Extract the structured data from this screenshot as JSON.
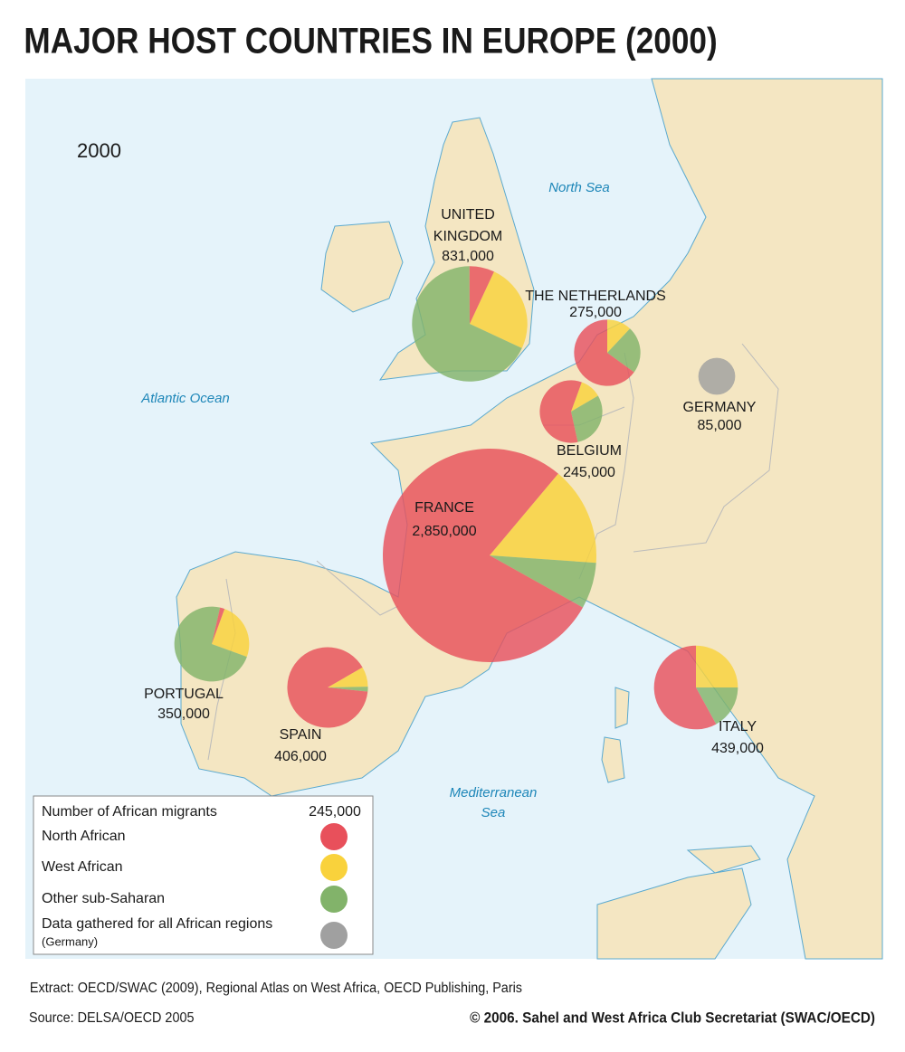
{
  "title": "MAJOR HOST COUNTRIES IN EUROPE (2000)",
  "year_label": "2000",
  "seas": [
    {
      "name_lines": [
        "North Sea"
      ]
    },
    {
      "name_lines": [
        "Atlantic Ocean"
      ]
    },
    {
      "name_lines": [
        "Mediterranean",
        "Sea"
      ]
    }
  ],
  "countries": [
    {
      "name_lines": [
        "UNITED",
        "KINGDOM"
      ],
      "total": 831000,
      "total_label": "831,000",
      "shares": [
        7,
        25,
        68
      ]
    },
    {
      "name_lines": [
        "THE NETHERLANDS"
      ],
      "total": 275000,
      "total_label": "275,000",
      "shares": [
        65,
        12,
        23
      ]
    },
    {
      "name_lines": [
        "BELGIUM"
      ],
      "total": 245000,
      "total_label": "245,000",
      "shares": [
        59,
        11,
        30
      ]
    },
    {
      "name_lines": [
        "FRANCE"
      ],
      "total": 2850000,
      "total_label": "2,850,000",
      "shares": [
        78,
        15,
        7
      ]
    },
    {
      "name_lines": [
        "GERMANY"
      ],
      "total": 85000,
      "total_label": "85,000"
    },
    {
      "name_lines": [
        "PORTUGAL"
      ],
      "total": 350000,
      "total_label": "350,000",
      "shares": [
        2,
        25,
        73
      ]
    },
    {
      "name_lines": [
        "SPAIN"
      ],
      "total": 406000,
      "total_label": "406,000",
      "shares": [
        90,
        8,
        2
      ]
    },
    {
      "name_lines": [
        "ITALY"
      ],
      "total": 439000,
      "total_label": "439,000",
      "shares": [
        58,
        25,
        17
      ]
    }
  ],
  "legend": {
    "title": "Number of African migrants",
    "reference_label": "245,000",
    "entries": [
      {
        "name": "North African",
        "color": "#e8505b"
      },
      {
        "name": "West African",
        "color": "#f9d23c"
      },
      {
        "name": "Other sub-Saharan",
        "color": "#82b36a"
      },
      {
        "name": "Data gathered for all African regions",
        "note": "(Germany)",
        "color": "#a0a0a0"
      }
    ]
  },
  "extract": "Extract: OECD/SWAC (2009), Regional Atlas on West Africa, OECD Publishing, Paris",
  "source": "Source: DELSA/OECD 2005",
  "copyright": "© 2006. Sahel and West Africa Club Secretariat (SWAC/OECD)"
}
